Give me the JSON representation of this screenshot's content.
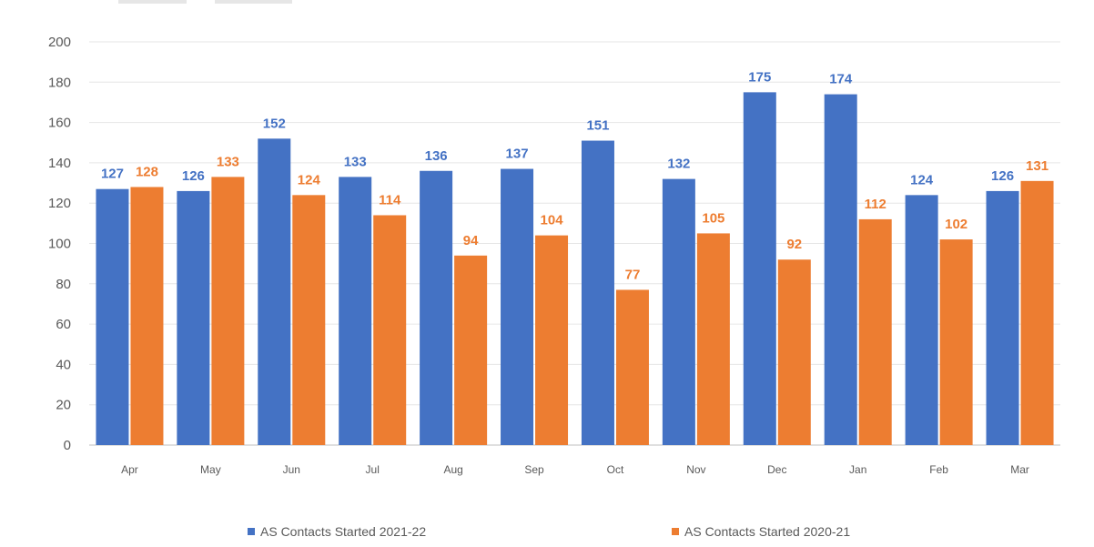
{
  "chart_data": {
    "type": "bar",
    "categories": [
      "Apr",
      "May",
      "Jun",
      "Jul",
      "Aug",
      "Sep",
      "Oct",
      "Nov",
      "Dec",
      "Jan",
      "Feb",
      "Mar"
    ],
    "series": [
      {
        "name": "AS Contacts Started 2021-22",
        "color": "#4472C4",
        "values": [
          127,
          126,
          152,
          133,
          136,
          137,
          151,
          132,
          175,
          174,
          124,
          126
        ]
      },
      {
        "name": "AS Contacts Started 2020-21",
        "color": "#ED7D31",
        "values": [
          128,
          133,
          124,
          114,
          94,
          104,
          77,
          105,
          92,
          112,
          102,
          131
        ]
      }
    ],
    "ylim": [
      0,
      200
    ],
    "yticks": [
      0,
      20,
      40,
      60,
      80,
      100,
      120,
      140,
      160,
      180,
      200
    ],
    "grid": true,
    "legend_position": "bottom",
    "data_labels": true
  }
}
